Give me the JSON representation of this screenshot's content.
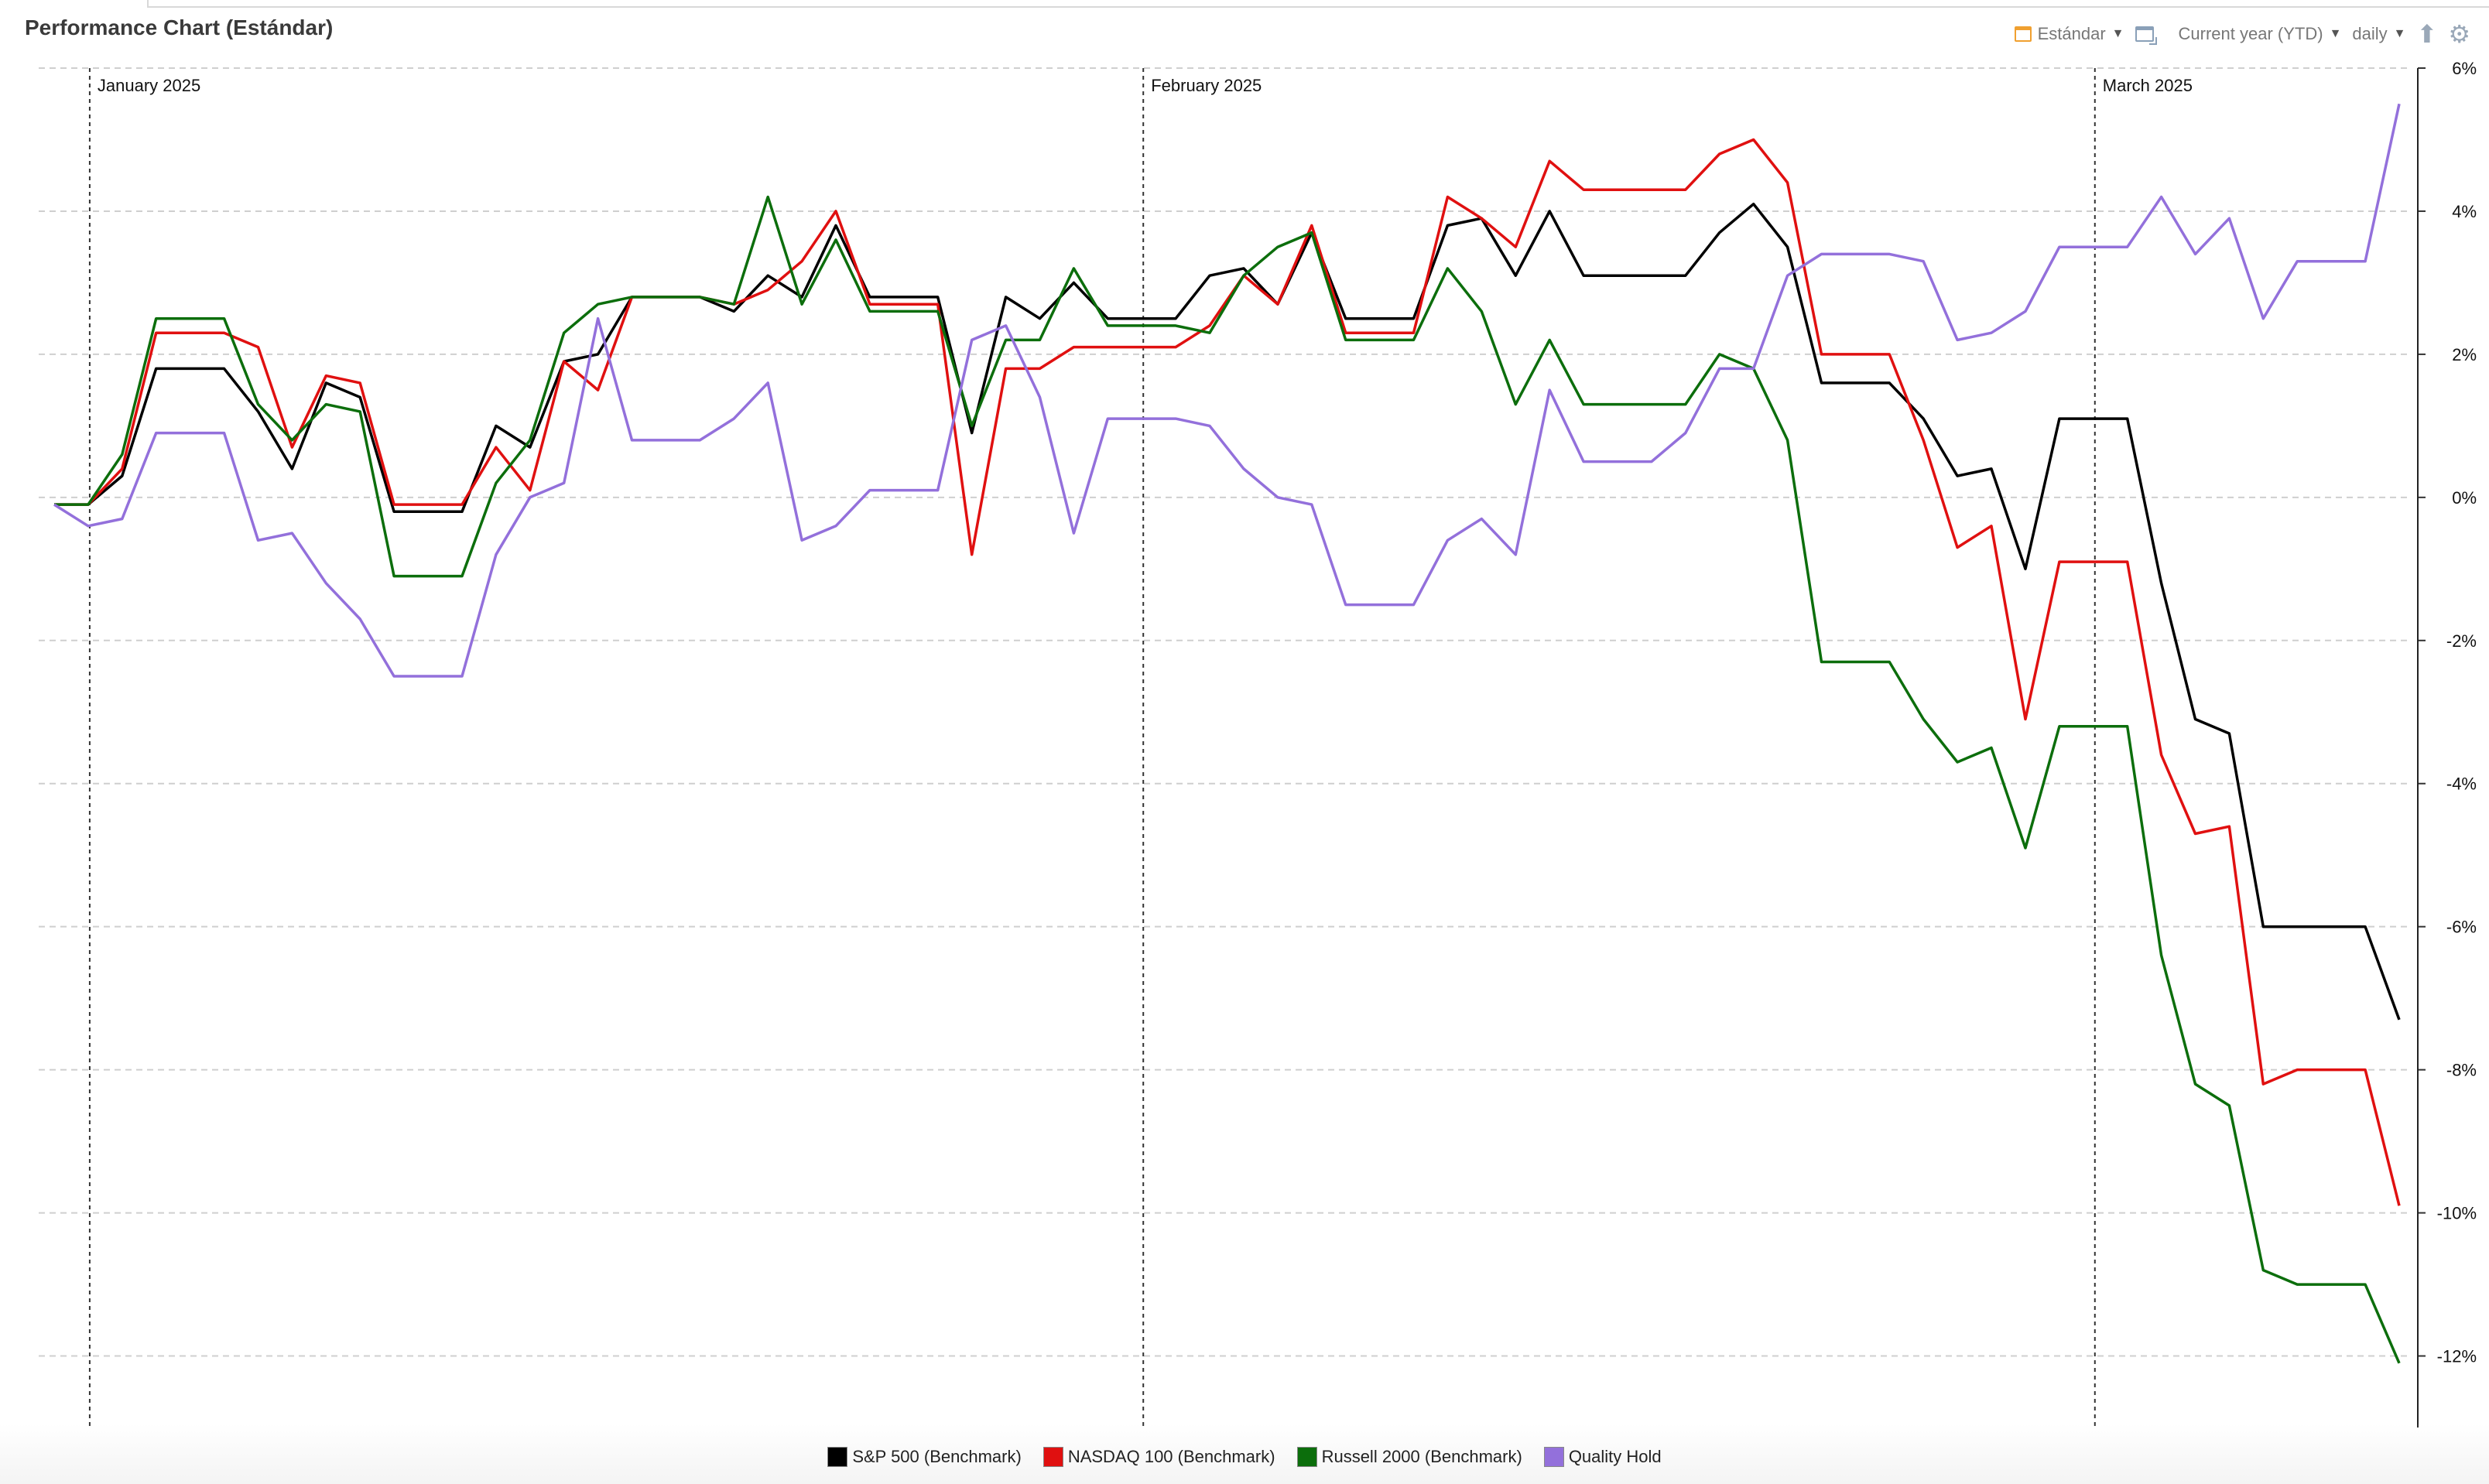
{
  "title": "Performance Chart (Estándar)",
  "toolbar": {
    "preset_label": "Estándar",
    "range_label": "Current year (YTD)",
    "interval_label": "daily",
    "preset_icon": "calendar-icon",
    "compare_icon": "window-icon",
    "export_icon": "upload-icon",
    "settings_icon": "gear-icon"
  },
  "chart_data": {
    "type": "line",
    "x_points": 70,
    "month_labels": [
      {
        "label": "January 2025",
        "index": 1
      },
      {
        "label": "February 2025",
        "index": 32
      },
      {
        "label": "March 2025",
        "index": 60
      }
    ],
    "ylim": [
      -13,
      6
    ],
    "y_ticks": [
      6,
      4,
      2,
      0,
      -2,
      -4,
      -6,
      -8,
      -10,
      -12
    ],
    "y_tick_labels": [
      "6%",
      "4%",
      "2%",
      "0%",
      "-2%",
      "-4%",
      "-6%",
      "-8%",
      "-10%",
      "-12%"
    ],
    "grid": true,
    "legend_position": "bottom",
    "series": [
      {
        "name": "S&P 500  (Benchmark)",
        "color": "#000000",
        "values": [
          -0.1,
          -0.1,
          0.3,
          1.8,
          1.8,
          1.8,
          1.2,
          0.4,
          1.6,
          1.4,
          -0.2,
          -0.2,
          -0.2,
          1.0,
          0.7,
          1.9,
          2.0,
          2.8,
          2.8,
          2.8,
          2.6,
          3.1,
          2.8,
          3.8,
          2.8,
          2.8,
          2.8,
          0.9,
          2.8,
          2.5,
          3.0,
          2.5,
          2.5,
          2.5,
          3.1,
          3.2,
          2.7,
          3.7,
          2.5,
          2.5,
          2.5,
          3.8,
          3.9,
          3.1,
          4.0,
          3.1,
          3.1,
          3.1,
          3.1,
          3.7,
          4.1,
          3.5,
          1.6,
          1.6,
          1.6,
          1.1,
          0.3,
          0.4,
          -1.0,
          1.1,
          1.1,
          1.1,
          -1.2,
          -3.1,
          -3.3,
          -6.0,
          -6.0,
          -6.0,
          -6.0,
          -7.3
        ]
      },
      {
        "name": "NASDAQ 100 (Benchmark)",
        "color": "#e01010",
        "values": [
          -0.1,
          -0.1,
          0.4,
          2.3,
          2.3,
          2.3,
          2.1,
          0.7,
          1.7,
          1.6,
          -0.1,
          -0.1,
          -0.1,
          0.7,
          0.1,
          1.9,
          1.5,
          2.8,
          2.8,
          2.8,
          2.7,
          2.9,
          3.3,
          4.0,
          2.7,
          2.7,
          2.7,
          -0.8,
          1.8,
          1.8,
          2.1,
          2.1,
          2.1,
          2.1,
          2.4,
          3.1,
          2.7,
          3.8,
          2.3,
          2.3,
          2.3,
          4.2,
          3.9,
          3.5,
          4.7,
          4.3,
          4.3,
          4.3,
          4.3,
          4.8,
          5.0,
          4.4,
          2.0,
          2.0,
          2.0,
          0.8,
          -0.7,
          -0.4,
          -3.1,
          -0.9,
          -0.9,
          -0.9,
          -3.6,
          -4.7,
          -4.6,
          -8.2,
          -8.0,
          -8.0,
          -8.0,
          -9.9
        ]
      },
      {
        "name": "Russell 2000 (Benchmark)",
        "color": "#0c6e0c",
        "values": [
          -0.1,
          -0.1,
          0.6,
          2.5,
          2.5,
          2.5,
          1.3,
          0.8,
          1.3,
          1.2,
          -1.1,
          -1.1,
          -1.1,
          0.2,
          0.8,
          2.3,
          2.7,
          2.8,
          2.8,
          2.8,
          2.7,
          4.2,
          2.7,
          3.6,
          2.6,
          2.6,
          2.6,
          1.0,
          2.2,
          2.2,
          3.2,
          2.4,
          2.4,
          2.4,
          2.3,
          3.1,
          3.5,
          3.7,
          2.2,
          2.2,
          2.2,
          3.2,
          2.6,
          1.3,
          2.2,
          1.3,
          1.3,
          1.3,
          1.3,
          2.0,
          1.8,
          0.8,
          -2.3,
          -2.3,
          -2.3,
          -3.1,
          -3.7,
          -3.5,
          -4.9,
          -3.2,
          -3.2,
          -3.2,
          -6.4,
          -8.2,
          -8.5,
          -10.8,
          -11.0,
          -11.0,
          -11.0,
          -12.1
        ]
      },
      {
        "name": "Quality Hold",
        "color": "#9370db",
        "values": [
          -0.1,
          -0.4,
          -0.3,
          0.9,
          0.9,
          0.9,
          -0.6,
          -0.5,
          -1.2,
          -1.7,
          -2.5,
          -2.5,
          -2.5,
          -0.8,
          0.0,
          0.2,
          2.5,
          0.8,
          0.8,
          0.8,
          1.1,
          1.6,
          -0.6,
          -0.4,
          0.1,
          0.1,
          0.1,
          2.2,
          2.4,
          1.4,
          -0.5,
          1.1,
          1.1,
          1.1,
          1.0,
          0.4,
          0.0,
          -0.1,
          -1.5,
          -1.5,
          -1.5,
          -0.6,
          -0.3,
          -0.8,
          1.5,
          0.5,
          0.5,
          0.5,
          0.9,
          1.8,
          1.8,
          3.1,
          3.4,
          3.4,
          3.4,
          3.3,
          2.2,
          2.3,
          2.6,
          3.5,
          3.5,
          3.5,
          4.2,
          3.4,
          3.9,
          2.5,
          3.3,
          3.3,
          3.3,
          5.5
        ]
      }
    ]
  }
}
